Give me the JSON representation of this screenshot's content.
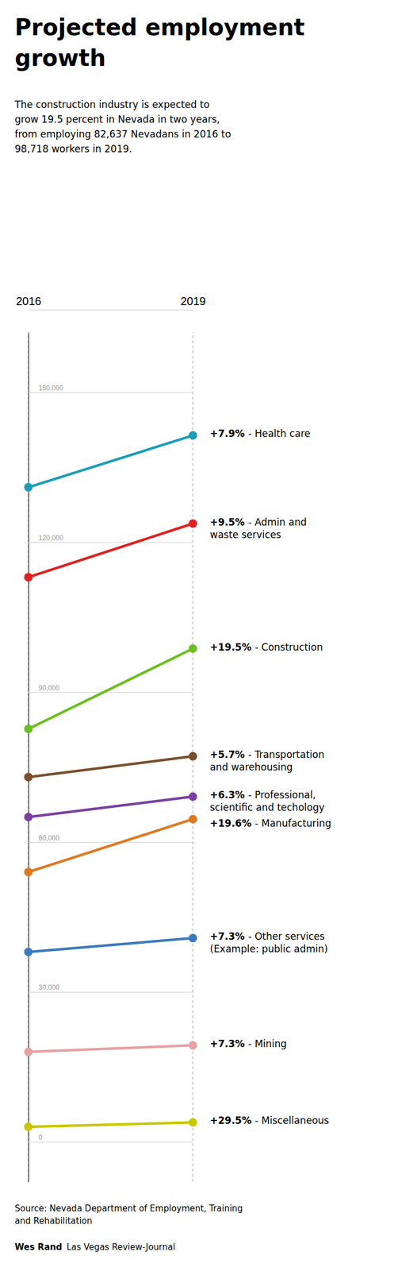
{
  "chart_data": {
    "type": "slope",
    "title": "Projected employment\ngrowth",
    "subtitle": "The construction industry is expected to\ngrow 19.5 percent in Nevada in two years,\nfrom employing 82,637 Nevadans in 2016 to\n98,718 workers in 2019.",
    "source": "Source: Nevada Department of Employment, Training\nand Rehabilitation",
    "credit": "Wes Rand",
    "credit_outlet": "Las Vegas Review-Journal",
    "categories": [
      "2016",
      "2019"
    ],
    "series": [
      {
        "name": "- Health care",
        "annotation": "+7.9%",
        "color": "#1b9dba",
        "values": [
          131000,
          141380
        ]
      },
      {
        "name": "- Admin and\nwaste services",
        "annotation": "+9.5%",
        "color": "#e02020",
        "values": [
          113000,
          123735
        ]
      },
      {
        "name": "- Construction",
        "annotation": "+19.5%",
        "color": "#6abf1e",
        "values": [
          82637,
          98718
        ]
      },
      {
        "name": "- Transportation\nand warehousing",
        "annotation": "+5.7%",
        "color": "#7a4f2e",
        "values": [
          73000,
          77161
        ]
      },
      {
        "name": "- Professional,\nscientific and techology",
        "annotation": "+6.3%",
        "color": "#7b3fa0",
        "values": [
          65000,
          69095
        ]
      },
      {
        "name": "- Manufacturing",
        "annotation": "+19.6%",
        "color": "#e07820",
        "values": [
          54000,
          64584
        ]
      },
      {
        "name": "- Other services\n(Example: public admin)",
        "annotation": "+7.3%",
        "color": "#3a7bbf",
        "values": [
          38000,
          40774
        ]
      },
      {
        "name": "- Mining",
        "annotation": "+7.3%",
        "color": "#e8a0a0",
        "values": [
          18000,
          19314
        ]
      },
      {
        "name": "- Miscellaneous",
        "annotation": "+29.5%",
        "color": "#c8c800",
        "values": [
          3000,
          3885
        ]
      }
    ],
    "ylim": [
      -8000,
      162000
    ],
    "yticks": [
      {
        "value": 150000,
        "label": "150,000"
      },
      {
        "value": 120000,
        "label": "120,000"
      },
      {
        "value": 90000,
        "label": "90,000"
      },
      {
        "value": 60000,
        "label": "60,000"
      },
      {
        "value": 30000,
        "label": "30,000"
      },
      0
    ],
    "grid": true
  }
}
